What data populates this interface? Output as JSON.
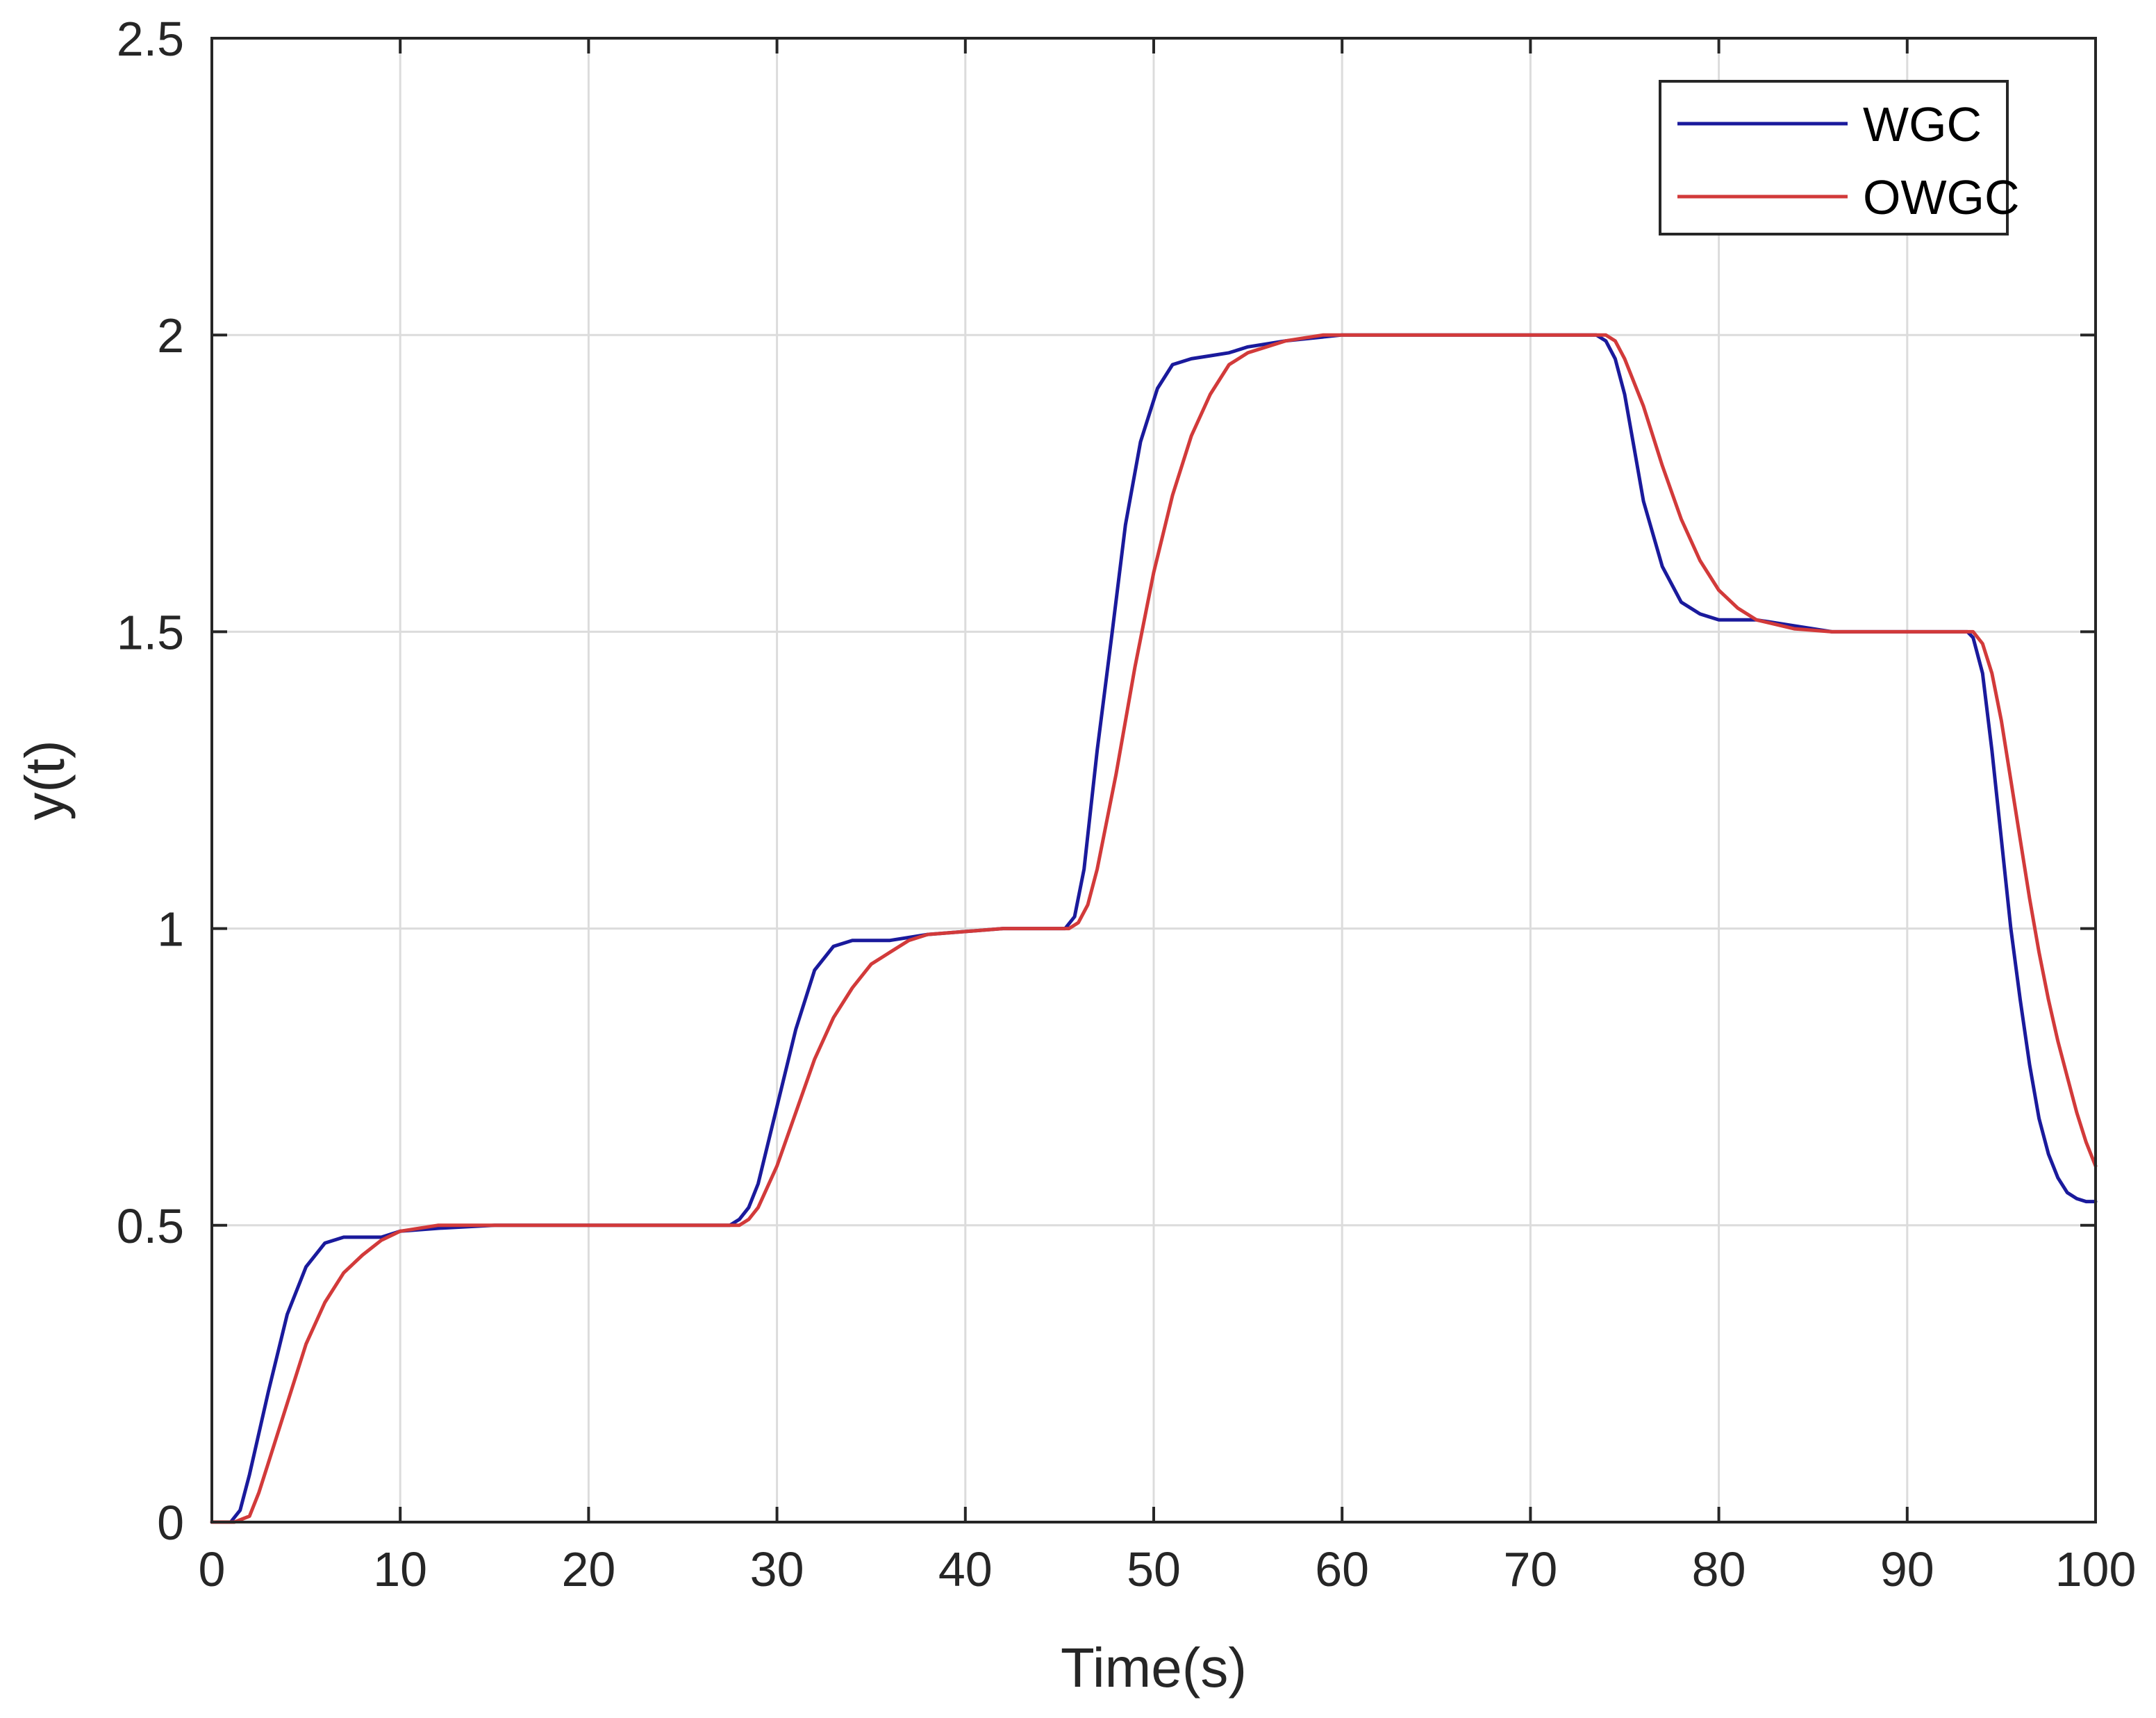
{
  "chart_data": {
    "type": "line",
    "title": "",
    "xlabel": "Time(s)",
    "ylabel": "y(t)",
    "xlim": [
      0,
      100
    ],
    "ylim": [
      0,
      2.5
    ],
    "xticks": [
      0,
      10,
      20,
      30,
      40,
      50,
      60,
      70,
      80,
      90,
      100
    ],
    "yticks": [
      0,
      0.5,
      1,
      1.5,
      2,
      2.5
    ],
    "xtick_labels": [
      "0",
      "10",
      "20",
      "30",
      "40",
      "50",
      "60",
      "70",
      "80",
      "90",
      "100"
    ],
    "ytick_labels": [
      "0",
      "0.5",
      "1",
      "1.5",
      "2",
      "2.5"
    ],
    "grid": true,
    "legend_position": "top-right",
    "series": [
      {
        "name": "WGC",
        "color": "#1a1a9c",
        "points": [
          [
            0,
            0
          ],
          [
            1,
            0
          ],
          [
            1.5,
            0.02
          ],
          [
            2,
            0.08
          ],
          [
            3,
            0.22
          ],
          [
            4,
            0.35
          ],
          [
            5,
            0.43
          ],
          [
            6,
            0.47
          ],
          [
            7,
            0.48
          ],
          [
            8,
            0.48
          ],
          [
            9,
            0.48
          ],
          [
            10,
            0.49
          ],
          [
            12,
            0.495
          ],
          [
            15,
            0.5
          ],
          [
            20,
            0.5
          ],
          [
            25,
            0.5
          ],
          [
            27.5,
            0.5
          ],
          [
            28,
            0.51
          ],
          [
            28.5,
            0.53
          ],
          [
            29,
            0.57
          ],
          [
            30,
            0.7
          ],
          [
            31,
            0.83
          ],
          [
            32,
            0.93
          ],
          [
            33,
            0.97
          ],
          [
            34,
            0.98
          ],
          [
            35,
            0.98
          ],
          [
            36,
            0.98
          ],
          [
            38,
            0.99
          ],
          [
            40,
            0.995
          ],
          [
            42,
            1
          ],
          [
            45.3,
            1
          ],
          [
            45.8,
            1.02
          ],
          [
            46.3,
            1.1
          ],
          [
            47,
            1.3
          ],
          [
            47.8,
            1.5
          ],
          [
            48.5,
            1.68
          ],
          [
            49.3,
            1.82
          ],
          [
            50.2,
            1.91
          ],
          [
            51,
            1.95
          ],
          [
            52,
            1.96
          ],
          [
            53,
            1.965
          ],
          [
            54,
            1.97
          ],
          [
            55,
            1.98
          ],
          [
            57,
            1.99
          ],
          [
            60,
            2
          ],
          [
            65,
            2
          ],
          [
            70,
            2
          ],
          [
            73.5,
            2
          ],
          [
            74,
            1.99
          ],
          [
            74.5,
            1.96
          ],
          [
            75,
            1.9
          ],
          [
            75.5,
            1.81
          ],
          [
            76,
            1.72
          ],
          [
            77,
            1.61
          ],
          [
            78,
            1.55
          ],
          [
            79,
            1.53
          ],
          [
            80,
            1.52
          ],
          [
            82,
            1.52
          ],
          [
            84,
            1.51
          ],
          [
            86,
            1.5
          ],
          [
            90,
            1.5
          ],
          [
            93.2,
            1.5
          ],
          [
            93.5,
            1.49
          ],
          [
            94,
            1.43
          ],
          [
            94.5,
            1.3
          ],
          [
            95,
            1.15
          ],
          [
            95.5,
            1.0
          ],
          [
            96,
            0.88
          ],
          [
            96.5,
            0.77
          ],
          [
            97,
            0.68
          ],
          [
            97.5,
            0.62
          ],
          [
            98,
            0.58
          ],
          [
            98.5,
            0.555
          ],
          [
            99,
            0.545
          ],
          [
            99.5,
            0.54
          ],
          [
            100,
            0.54
          ]
        ]
      },
      {
        "name": "OWGC",
        "color": "#d23a3a",
        "points": [
          [
            0,
            0
          ],
          [
            1.2,
            0
          ],
          [
            2,
            0.01
          ],
          [
            2.5,
            0.05
          ],
          [
            3,
            0.1
          ],
          [
            4,
            0.2
          ],
          [
            5,
            0.3
          ],
          [
            6,
            0.37
          ],
          [
            7,
            0.42
          ],
          [
            8,
            0.45
          ],
          [
            9,
            0.475
          ],
          [
            10,
            0.49
          ],
          [
            12,
            0.5
          ],
          [
            15,
            0.5
          ],
          [
            20,
            0.5
          ],
          [
            25,
            0.5
          ],
          [
            28,
            0.5
          ],
          [
            28.5,
            0.51
          ],
          [
            29,
            0.53
          ],
          [
            30,
            0.6
          ],
          [
            31,
            0.69
          ],
          [
            32,
            0.78
          ],
          [
            33,
            0.85
          ],
          [
            34,
            0.9
          ],
          [
            35,
            0.94
          ],
          [
            36,
            0.96
          ],
          [
            37,
            0.98
          ],
          [
            38,
            0.99
          ],
          [
            40,
            0.995
          ],
          [
            42,
            1
          ],
          [
            45.5,
            1
          ],
          [
            46,
            1.01
          ],
          [
            46.5,
            1.04
          ],
          [
            47,
            1.1
          ],
          [
            48,
            1.26
          ],
          [
            49,
            1.44
          ],
          [
            50,
            1.6
          ],
          [
            51,
            1.73
          ],
          [
            52,
            1.83
          ],
          [
            53,
            1.9
          ],
          [
            54,
            1.95
          ],
          [
            55,
            1.97
          ],
          [
            57,
            1.99
          ],
          [
            59,
            2
          ],
          [
            65,
            2
          ],
          [
            70,
            2
          ],
          [
            74,
            2
          ],
          [
            74.5,
            1.99
          ],
          [
            75,
            1.96
          ],
          [
            76,
            1.88
          ],
          [
            77,
            1.78
          ],
          [
            78,
            1.69
          ],
          [
            79,
            1.62
          ],
          [
            80,
            1.57
          ],
          [
            81,
            1.54
          ],
          [
            82,
            1.52
          ],
          [
            84,
            1.505
          ],
          [
            86,
            1.5
          ],
          [
            90,
            1.5
          ],
          [
            93.5,
            1.5
          ],
          [
            94,
            1.48
          ],
          [
            94.5,
            1.43
          ],
          [
            95,
            1.35
          ],
          [
            95.5,
            1.25
          ],
          [
            96,
            1.15
          ],
          [
            96.5,
            1.05
          ],
          [
            97,
            0.96
          ],
          [
            97.5,
            0.88
          ],
          [
            98,
            0.81
          ],
          [
            98.5,
            0.75
          ],
          [
            99,
            0.69
          ],
          [
            99.5,
            0.64
          ],
          [
            100,
            0.6
          ]
        ]
      }
    ]
  }
}
